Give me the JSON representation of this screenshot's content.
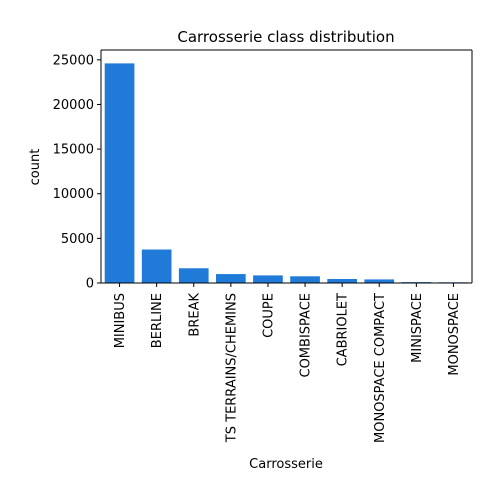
{
  "chart_data": {
    "type": "bar",
    "title": "Carrosserie class distribution",
    "xlabel": "Carrosserie",
    "ylabel": "count",
    "categories": [
      "MINIBUS",
      "BERLINE",
      "BREAK",
      "TS TERRAINS/CHEMINS",
      "COUPE",
      "COMBISPACE",
      "CABRIOLET",
      "MONOSPACE COMPACT",
      "MINISPACE",
      "MONOSPACE"
    ],
    "values": [
      24600,
      3750,
      1650,
      1000,
      850,
      750,
      450,
      400,
      100,
      80
    ],
    "ylim": [
      0,
      26100
    ],
    "yticks": [
      0,
      5000,
      10000,
      15000,
      20000,
      25000
    ],
    "ytick_labels": [
      "0",
      "5000",
      "10000",
      "15000",
      "20000",
      "25000"
    ],
    "bar_color": "#1f7ad8",
    "grid": false,
    "legend": "none"
  }
}
